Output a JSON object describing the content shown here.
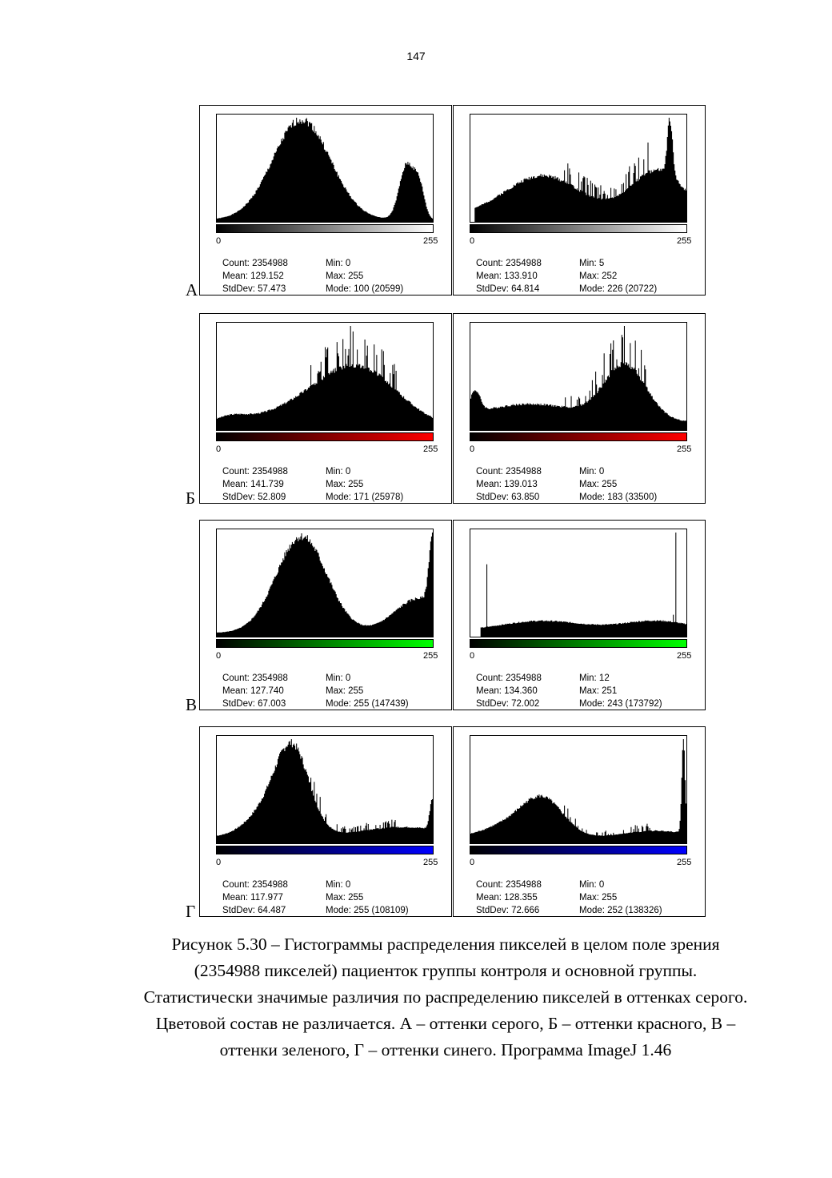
{
  "page_number": "147",
  "rows": [
    {
      "label": "А",
      "lut": "gray",
      "panels": [
        {
          "hist": {
            "peaks": [
              [
                100,
                1.0,
                34
              ],
              [
                225,
                0.55,
                9
              ],
              [
                240,
                0.28,
                6
              ]
            ],
            "base": 0.02,
            "spiky": false,
            "seed": 1,
            "start": 0
          },
          "tick_lo": "0",
          "tick_hi": "255",
          "count": "Count: 2354988",
          "mean": "Mean: 129.152",
          "stddev": "StdDev: 57.473",
          "min": "Min: 0",
          "max": "Max: 255",
          "mode": "Mode: 100 (20599)"
        },
        {
          "hist": {
            "peaks": [
              [
                85,
                0.72,
                45
              ],
              [
                226,
                0.65,
                30
              ],
              [
                236,
                1.0,
                3
              ],
              [
                205,
                0.2,
                30
              ]
            ],
            "base": 0.1,
            "spiky": true,
            "seed": 2,
            "start": 5
          },
          "tick_lo": "0",
          "tick_hi": "255",
          "count": "Count: 2354988",
          "mean": "Mean: 133.910",
          "stddev": "StdDev: 64.814",
          "min": "Min: 5",
          "max": "Max: 252",
          "mode": "Mode: 226 (20722)"
        }
      ]
    },
    {
      "label": "Б",
      "lut": "red",
      "panels": [
        {
          "hist": {
            "peaks": [
              [
                171,
                0.62,
                45
              ],
              [
                120,
                0.3,
                60
              ],
              [
                15,
                0.1,
                20
              ]
            ],
            "base": 0.04,
            "spiky": true,
            "seed": 3,
            "start": 0
          },
          "tick_lo": "0",
          "tick_hi": "255",
          "count": "Count: 2354988",
          "mean": "Mean: 141.739",
          "stddev": "StdDev: 52.809",
          "min": "Min: 0",
          "max": "Max: 255",
          "mode": "Mode: 171 (25978)"
        },
        {
          "hist": {
            "peaks": [
              [
                183,
                0.55,
                25
              ],
              [
                70,
                0.18,
                60
              ],
              [
                5,
                0.22,
                6
              ]
            ],
            "base": 0.08,
            "spiky": true,
            "seed": 4,
            "start": 0
          },
          "tick_lo": "0",
          "tick_hi": "255",
          "count": "Count: 2354988",
          "mean": "Mean: 139.013",
          "stddev": "StdDev: 63.850",
          "min": "Min: 0",
          "max": "Max: 255",
          "mode": "Mode: 183 (33500)"
        }
      ]
    },
    {
      "label": "В",
      "lut": "green",
      "panels": [
        {
          "hist": {
            "peaks": [
              [
                100,
                0.78,
                30
              ],
              [
                255,
                0.55,
                4
              ],
              [
                240,
                0.28,
                30
              ]
            ],
            "base": 0.03,
            "spiky": false,
            "seed": 5,
            "start": 0
          },
          "tick_lo": "0",
          "tick_hi": "255",
          "count": "Count: 2354988",
          "mean": "Mean: 127.740",
          "stddev": "StdDev: 67.003",
          "min": "Min: 0",
          "max": "Max: 255",
          "mode": "Mode: 255 (147439)"
        },
        {
          "hist": {
            "peaks": [
              [
                85,
                0.1,
                50
              ],
              [
                220,
                0.1,
                40
              ]
            ],
            "base": 0.05,
            "spiky": false,
            "seed": 6,
            "start": 12,
            "spikes": [
              [
                19,
                0.66
              ],
              [
                243,
                0.95
              ],
              [
                240,
                0.2
              ]
            ]
          },
          "tick_lo": "0",
          "tick_hi": "255",
          "count": "Count: 2354988",
          "mean": "Mean: 134.360",
          "stddev": "StdDev: 72.002",
          "min": "Min: 12",
          "max": "Max: 251",
          "mode": "Mode: 243 (173792)"
        }
      ]
    },
    {
      "label": "Г",
      "lut": "blue",
      "panels": [
        {
          "hist": {
            "peaks": [
              [
                90,
                0.65,
                20
              ],
              [
                60,
                0.2,
                25
              ],
              [
                220,
                0.08,
                50
              ],
              [
                255,
                0.25,
                3
              ]
            ],
            "base": 0.05,
            "spiky": true,
            "seed": 7,
            "start": 0
          },
          "tick_lo": "0",
          "tick_hi": "255",
          "count": "Count: 2354988",
          "mean": "Mean: 117.977",
          "stddev": "StdDev: 64.487",
          "min": "Min: 0",
          "max": "Max: 255",
          "mode": "Mode: 255 (108109)"
        },
        {
          "hist": {
            "peaks": [
              [
                85,
                0.4,
                25
              ],
              [
                40,
                0.12,
                30
              ],
              [
                220,
                0.08,
                40
              ],
              [
                252,
                0.95,
                2
              ]
            ],
            "base": 0.05,
            "spiky": true,
            "seed": 8,
            "start": 0
          },
          "tick_lo": "0",
          "tick_hi": "255",
          "count": "Count: 2354988",
          "mean": "Mean: 128.355",
          "stddev": "StdDev: 72.666",
          "min": "Min: 0",
          "max": "Max: 255",
          "mode": "Mode: 252 (138326)"
        }
      ]
    }
  ],
  "caption": [
    "Рисунок 5.30 – Гистограммы распределения пикселей в целом поле зрения",
    "(2354988 пикселей) пациенток группы контроля и основной группы.",
    "Статистически значимые различия по распределению пикселей в оттенках серого.",
    "Цветовой состав не различается. А – оттенки серого, Б – оттенки красного, В –",
    "оттенки зеленого, Г – оттенки синего. Программа ImageJ 1.46"
  ],
  "lut_colors": {
    "gray": "#ffffff",
    "red": "#ff0000",
    "green": "#00ff00",
    "blue": "#0000ff"
  }
}
